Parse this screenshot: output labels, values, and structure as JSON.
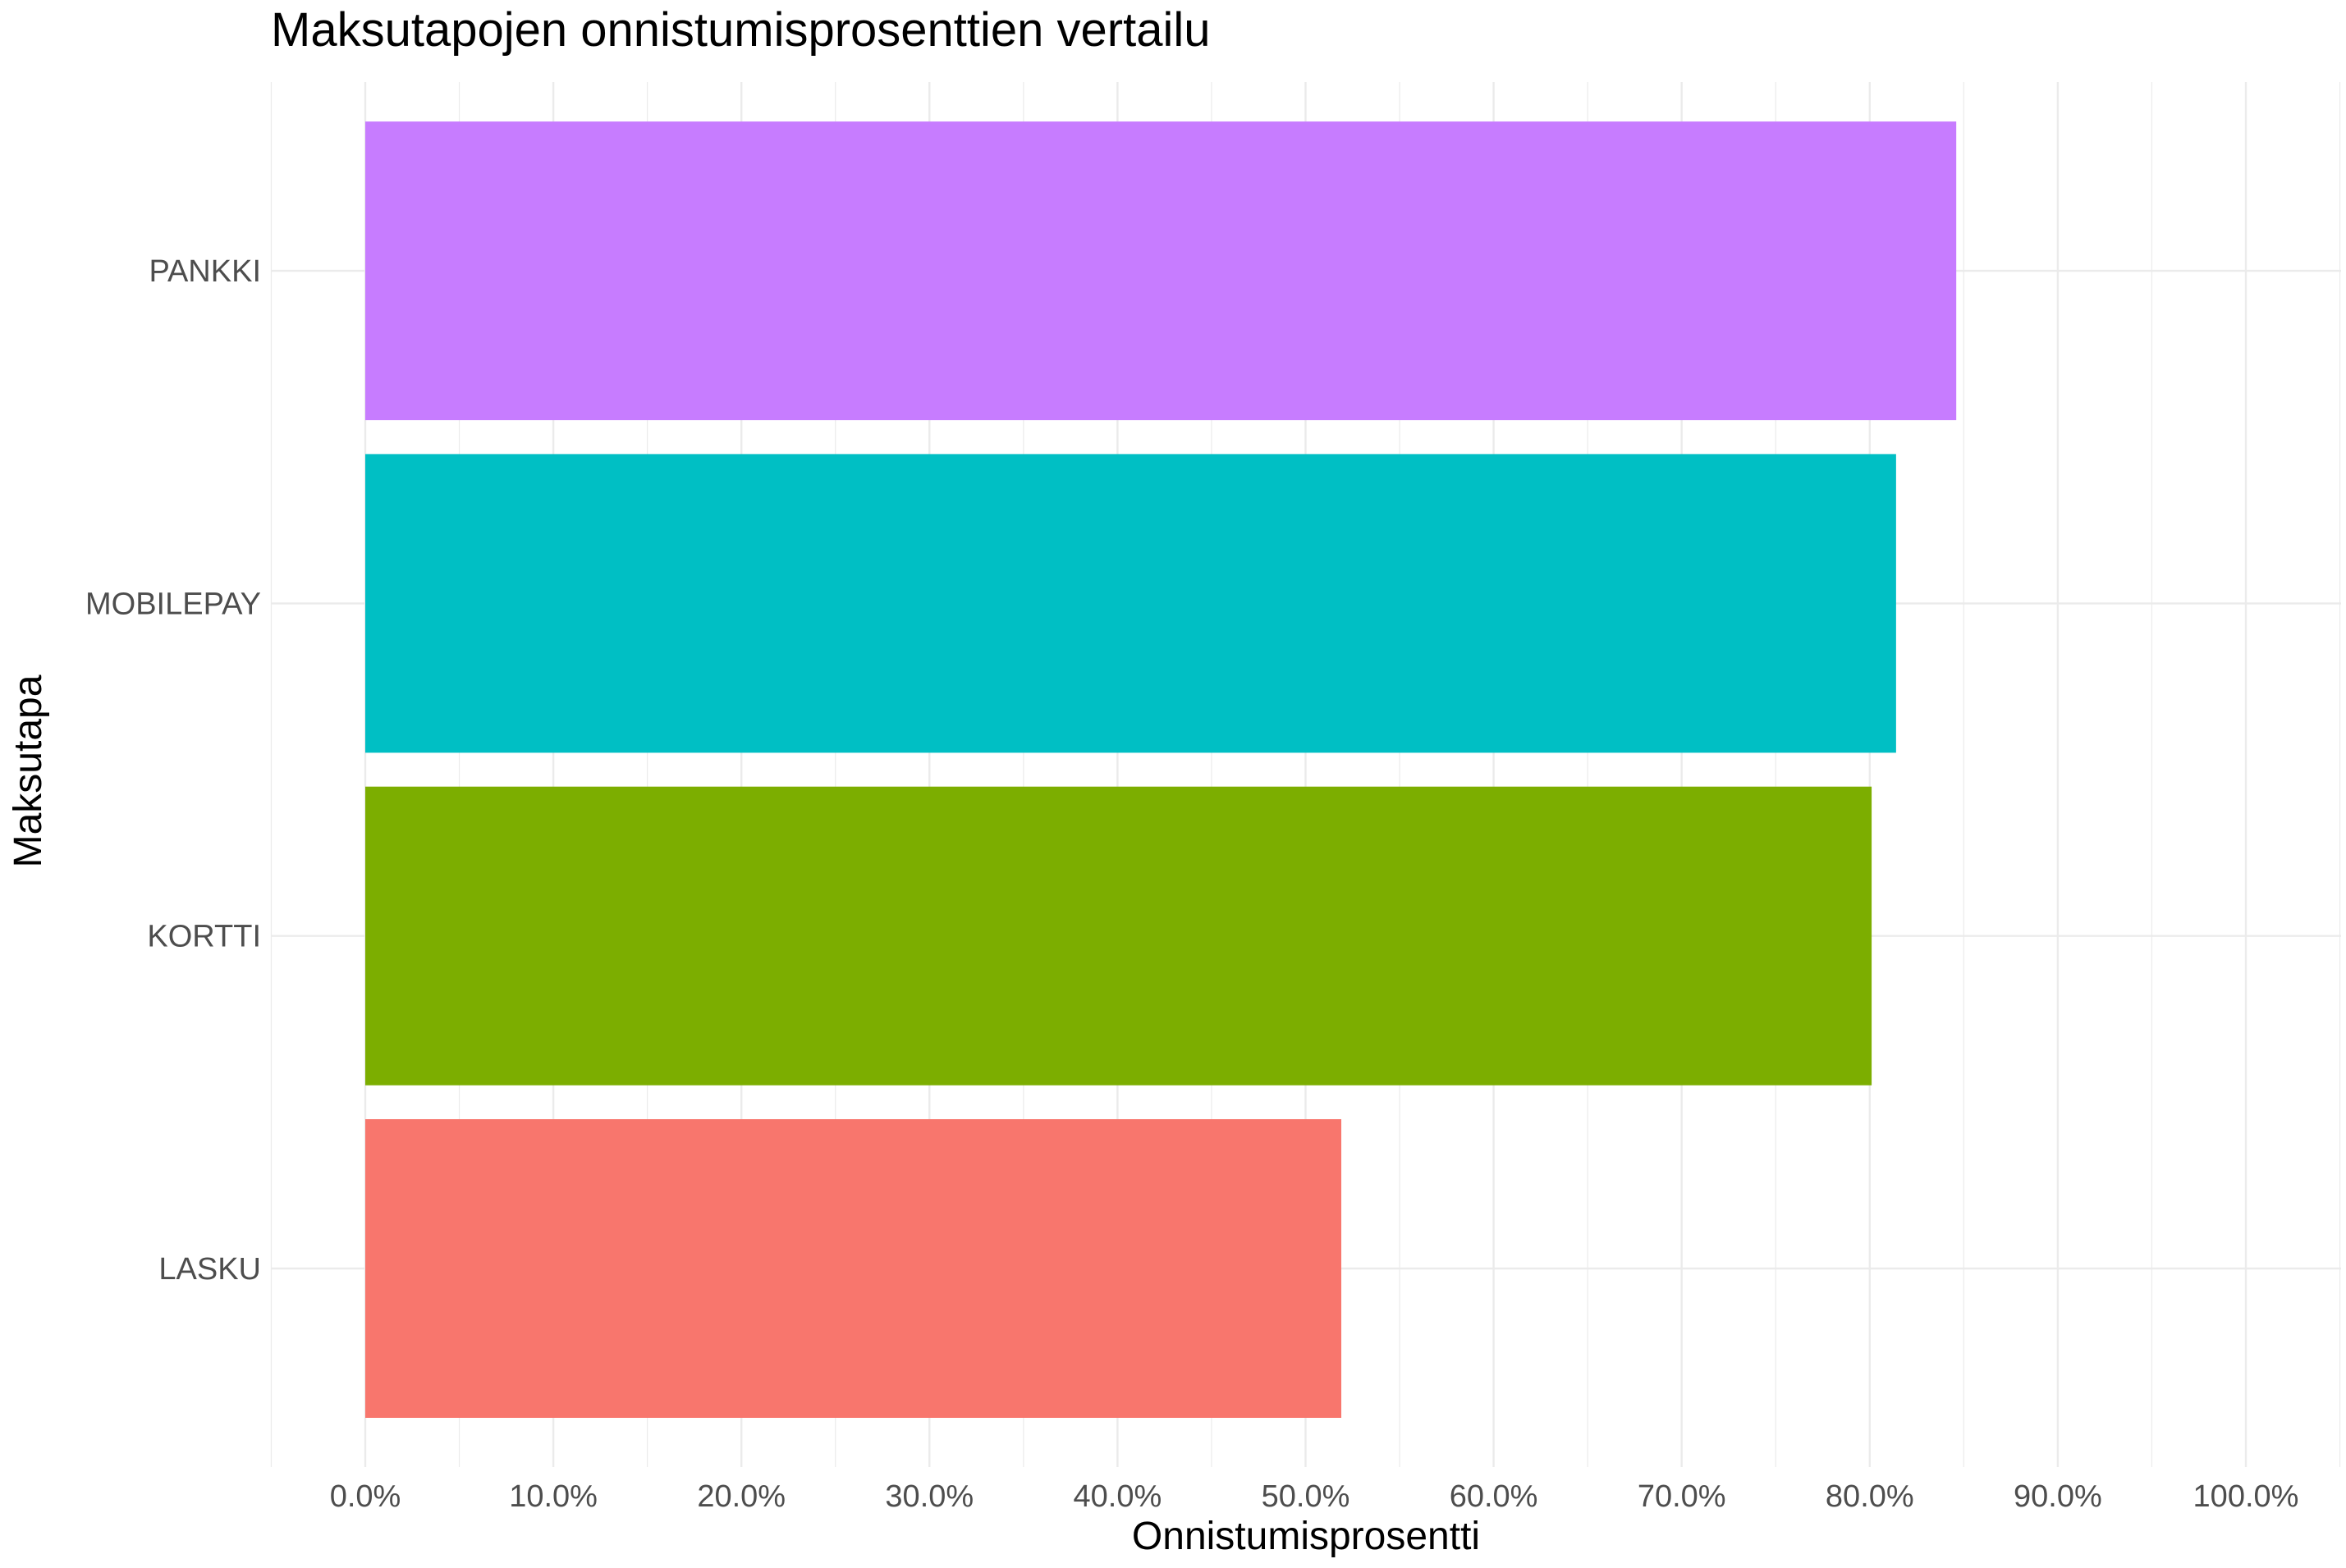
{
  "chart_data": {
    "type": "bar",
    "orientation": "horizontal",
    "title": "Maksutapojen onnistumisprosenttien vertailu",
    "xlabel": "Onnistumisprosentti",
    "ylabel": "Maksutapa",
    "categories": [
      "LASKU",
      "KORTTI",
      "MOBILEPAY",
      "PANKKI"
    ],
    "values": [
      0.519,
      0.801,
      0.814,
      0.846
    ],
    "colors": [
      "#F8766D",
      "#7CAE00",
      "#00BFC4",
      "#C77CFF"
    ],
    "xlim": [
      0,
      1
    ],
    "x_ticks": [
      0,
      0.1,
      0.2,
      0.3,
      0.4,
      0.5,
      0.6,
      0.7,
      0.8,
      0.9,
      1.0
    ],
    "x_tick_labels": [
      "0.0%",
      "10.0%",
      "20.0%",
      "30.0%",
      "40.0%",
      "50.0%",
      "60.0%",
      "70.0%",
      "80.0%",
      "90.0%",
      "100.0%"
    ],
    "grid": true,
    "legend": false
  }
}
